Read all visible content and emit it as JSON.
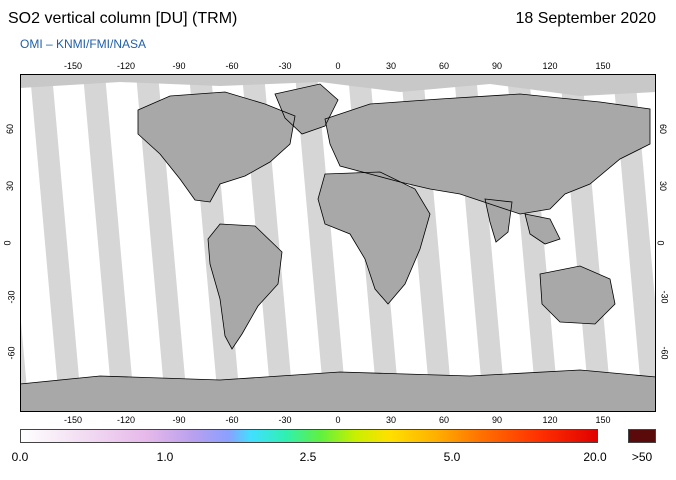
{
  "header": {
    "title": "SO2 vertical column [DU] (TRM)",
    "date": "18 September 2020",
    "subtitle": "OMI  –  KNMI/FMI/NASA"
  },
  "map": {
    "lon_ticks": [
      "-150",
      "-120",
      "-90",
      "-60",
      "-30",
      "0",
      "30",
      "60",
      "90",
      "120",
      "150"
    ],
    "lat_ticks": [
      "60",
      "30",
      "0",
      "-30",
      "-60"
    ],
    "colors": {
      "ocean_bg": "#ffffff",
      "swath_light": "#d6d6d6",
      "swath_dark": "#a8a8a8",
      "polar": "#c8c8c8",
      "coast": "#000000"
    }
  },
  "colorbar": {
    "labels": [
      "0.0",
      "1.0",
      "2.5",
      "5.0",
      "20.0",
      ">50"
    ],
    "overflow_color": "#5a0a0a"
  }
}
